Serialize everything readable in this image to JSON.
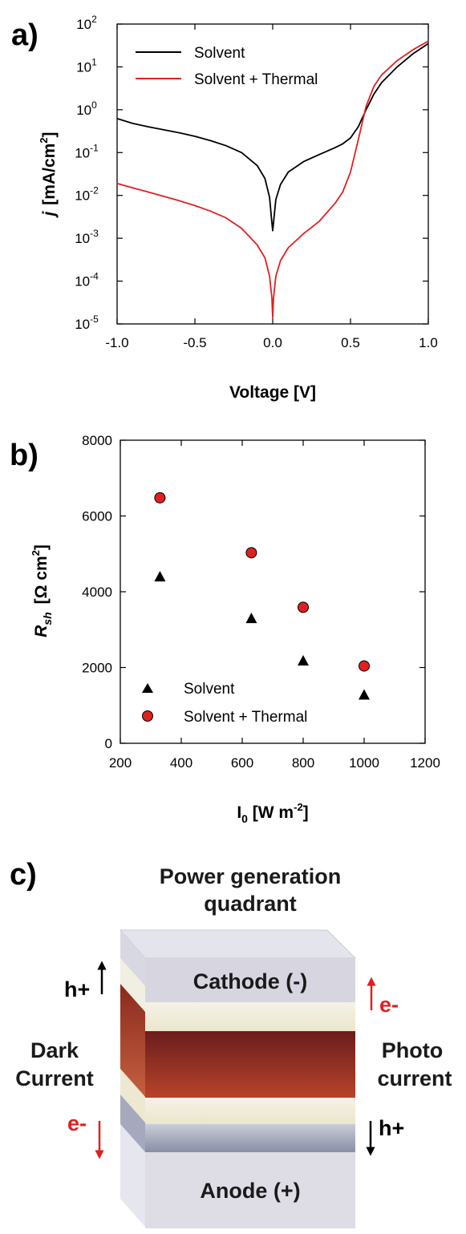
{
  "chart_data": [
    {
      "panel_label": "a)",
      "type": "line",
      "xlabel": "Voltage [V]",
      "ylabel_main": "j",
      "ylabel_units": "[mA/cm",
      "ylabel_exp": "2",
      "ylabel_close": "]",
      "xlim": [
        -1.0,
        1.0
      ],
      "ylim": [
        1e-05,
        100
      ],
      "yscale": "log",
      "x_ticks": [
        "-1.0",
        "-0.5",
        "0.0",
        "0.5",
        "1.0"
      ],
      "y_ticks": [
        {
          "base": "10",
          "exp": "-5"
        },
        {
          "base": "10",
          "exp": "-4"
        },
        {
          "base": "10",
          "exp": "-3"
        },
        {
          "base": "10",
          "exp": "-2"
        },
        {
          "base": "10",
          "exp": "-1"
        },
        {
          "base": "10",
          "exp": "0"
        },
        {
          "base": "10",
          "exp": "1"
        },
        {
          "base": "10",
          "exp": "2"
        }
      ],
      "legend_position": "top-right",
      "series": [
        {
          "name": "Solvent",
          "color": "#000000",
          "points": [
            [
              -1.0,
              0.62
            ],
            [
              -0.9,
              0.48
            ],
            [
              -0.8,
              0.4
            ],
            [
              -0.7,
              0.34
            ],
            [
              -0.6,
              0.29
            ],
            [
              -0.5,
              0.24
            ],
            [
              -0.4,
              0.19
            ],
            [
              -0.3,
              0.145
            ],
            [
              -0.2,
              0.1
            ],
            [
              -0.1,
              0.05
            ],
            [
              -0.05,
              0.025
            ],
            [
              -0.02,
              0.009
            ],
            [
              -0.006,
              0.0025
            ],
            [
              0.0,
              0.0015
            ],
            [
              0.006,
              0.0025
            ],
            [
              0.02,
              0.008
            ],
            [
              0.05,
              0.018
            ],
            [
              0.1,
              0.035
            ],
            [
              0.2,
              0.062
            ],
            [
              0.3,
              0.09
            ],
            [
              0.4,
              0.13
            ],
            [
              0.45,
              0.16
            ],
            [
              0.5,
              0.22
            ],
            [
              0.55,
              0.4
            ],
            [
              0.6,
              1.0
            ],
            [
              0.65,
              2.3
            ],
            [
              0.7,
              4.3
            ],
            [
              0.8,
              10
            ],
            [
              0.9,
              20
            ],
            [
              1.0,
              35
            ]
          ]
        },
        {
          "name": "Solvent + Thermal",
          "color": "#e02020",
          "points": [
            [
              -1.0,
              0.019
            ],
            [
              -0.9,
              0.015
            ],
            [
              -0.8,
              0.012
            ],
            [
              -0.7,
              0.0095
            ],
            [
              -0.6,
              0.0075
            ],
            [
              -0.5,
              0.0058
            ],
            [
              -0.4,
              0.0043
            ],
            [
              -0.3,
              0.003
            ],
            [
              -0.2,
              0.0017
            ],
            [
              -0.1,
              0.0007
            ],
            [
              -0.05,
              0.00035
            ],
            [
              -0.02,
              0.00013
            ],
            [
              -0.005,
              4e-05
            ],
            [
              0.0,
              1.4e-05
            ],
            [
              0.005,
              4e-05
            ],
            [
              0.02,
              0.00013
            ],
            [
              0.05,
              0.0003
            ],
            [
              0.1,
              0.0006
            ],
            [
              0.2,
              0.0013
            ],
            [
              0.3,
              0.0025
            ],
            [
              0.4,
              0.0065
            ],
            [
              0.45,
              0.012
            ],
            [
              0.5,
              0.035
            ],
            [
              0.55,
              0.2
            ],
            [
              0.6,
              1.2
            ],
            [
              0.65,
              3.5
            ],
            [
              0.7,
              6.5
            ],
            [
              0.8,
              14
            ],
            [
              0.9,
              25
            ],
            [
              1.0,
              40
            ]
          ]
        }
      ]
    },
    {
      "panel_label": "b)",
      "type": "scatter",
      "xlabel_main": "I",
      "xlabel_sub": "0",
      "xlabel_units": " [W m",
      "xlabel_exp": "-2",
      "xlabel_close": "]",
      "ylabel_main": "R",
      "ylabel_sub": "sh",
      "ylabel_units": "[Ω cm",
      "ylabel_exp": "2",
      "ylabel_close": "]",
      "xlim": [
        200,
        1200
      ],
      "ylim": [
        0,
        8000
      ],
      "x_ticks": [
        "200",
        "400",
        "600",
        "800",
        "1000",
        "1200"
      ],
      "y_ticks": [
        "0",
        "2000",
        "4000",
        "6000",
        "8000"
      ],
      "legend_position": "bottom-left",
      "series": [
        {
          "name": "Solvent",
          "marker": "triangle",
          "color": "#000000",
          "x": [
            330,
            630,
            800,
            1000
          ],
          "y": [
            4400,
            3300,
            2180,
            1280
          ]
        },
        {
          "name": "Solvent + Thermal",
          "marker": "circle",
          "color": "#e02020",
          "x": [
            330,
            630,
            800,
            1000
          ],
          "y": [
            6480,
            5030,
            3590,
            2040
          ]
        }
      ]
    }
  ],
  "diagram": {
    "panel_label": "c)",
    "title_line1": "Power generation",
    "title_line2": "quadrant",
    "cathode_label": "Cathode (-)",
    "anode_label": "Anode (+)",
    "left_top_carrier": "h+",
    "left_bottom_carrier": "e-",
    "right_top_carrier": "e-",
    "right_bottom_carrier": "h+",
    "dark_line1": "Dark",
    "dark_line2": "Current",
    "photo_line1": "Photo",
    "photo_line2": "current",
    "colors": {
      "electron": "#e02020",
      "hole": "#000000",
      "active_top": "#6b1d1d",
      "active_bottom": "#b8432a"
    }
  }
}
